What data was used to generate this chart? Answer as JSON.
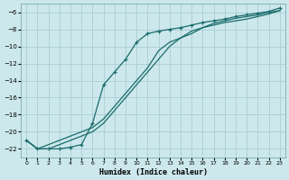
{
  "xlabel": "Humidex (Indice chaleur)",
  "bg_color": "#cce8ec",
  "grid_color": "#aacdd4",
  "line_color": "#1a6b6b",
  "xlim": [
    -0.5,
    23.5
  ],
  "ylim": [
    -23,
    -5
  ],
  "xticks": [
    0,
    1,
    2,
    3,
    4,
    5,
    6,
    7,
    8,
    9,
    10,
    11,
    12,
    13,
    14,
    15,
    16,
    17,
    18,
    19,
    20,
    21,
    22,
    23
  ],
  "yticks": [
    -22,
    -20,
    -18,
    -16,
    -14,
    -12,
    -10,
    -8,
    -6
  ],
  "line1_x": [
    0,
    1,
    2,
    3,
    4,
    5,
    6,
    7,
    8,
    9,
    10,
    11,
    12,
    13,
    14,
    15,
    16,
    17,
    18,
    19,
    20,
    21,
    22,
    23
  ],
  "line1_y": [
    -21.0,
    -22.0,
    -22.0,
    -21.5,
    -21.0,
    -20.5,
    -20.0,
    -19.0,
    -17.5,
    -16.0,
    -14.5,
    -13.0,
    -11.5,
    -10.0,
    -9.0,
    -8.5,
    -7.8,
    -7.5,
    -7.2,
    -7.0,
    -6.8,
    -6.5,
    -6.2,
    -5.8
  ],
  "line2_x": [
    0,
    1,
    2,
    3,
    4,
    5,
    6,
    7,
    8,
    9,
    10,
    11,
    12,
    13,
    14,
    15,
    16,
    17,
    18,
    19,
    20,
    21,
    22,
    23
  ],
  "line2_y": [
    -21.0,
    -22.0,
    -22.0,
    -22.0,
    -21.8,
    -21.5,
    -19.0,
    -14.5,
    -13.0,
    -11.5,
    -9.5,
    -8.5,
    -8.2,
    -8.0,
    -7.8,
    -7.5,
    -7.2,
    -7.0,
    -6.8,
    -6.5,
    -6.3,
    -6.1,
    -5.9,
    -5.5
  ],
  "line3_x": [
    0,
    1,
    2,
    3,
    4,
    5,
    6,
    7,
    8,
    9,
    10,
    11,
    12,
    13,
    14,
    15,
    16,
    17,
    18,
    19,
    20,
    21,
    22,
    23
  ],
  "line3_y": [
    -21.0,
    -22.0,
    -21.5,
    -21.0,
    -20.5,
    -20.0,
    -19.5,
    -18.5,
    -17.0,
    -15.5,
    -14.0,
    -12.5,
    -10.5,
    -9.5,
    -9.0,
    -8.2,
    -7.8,
    -7.3,
    -7.0,
    -6.7,
    -6.5,
    -6.3,
    -6.0,
    -5.8
  ]
}
